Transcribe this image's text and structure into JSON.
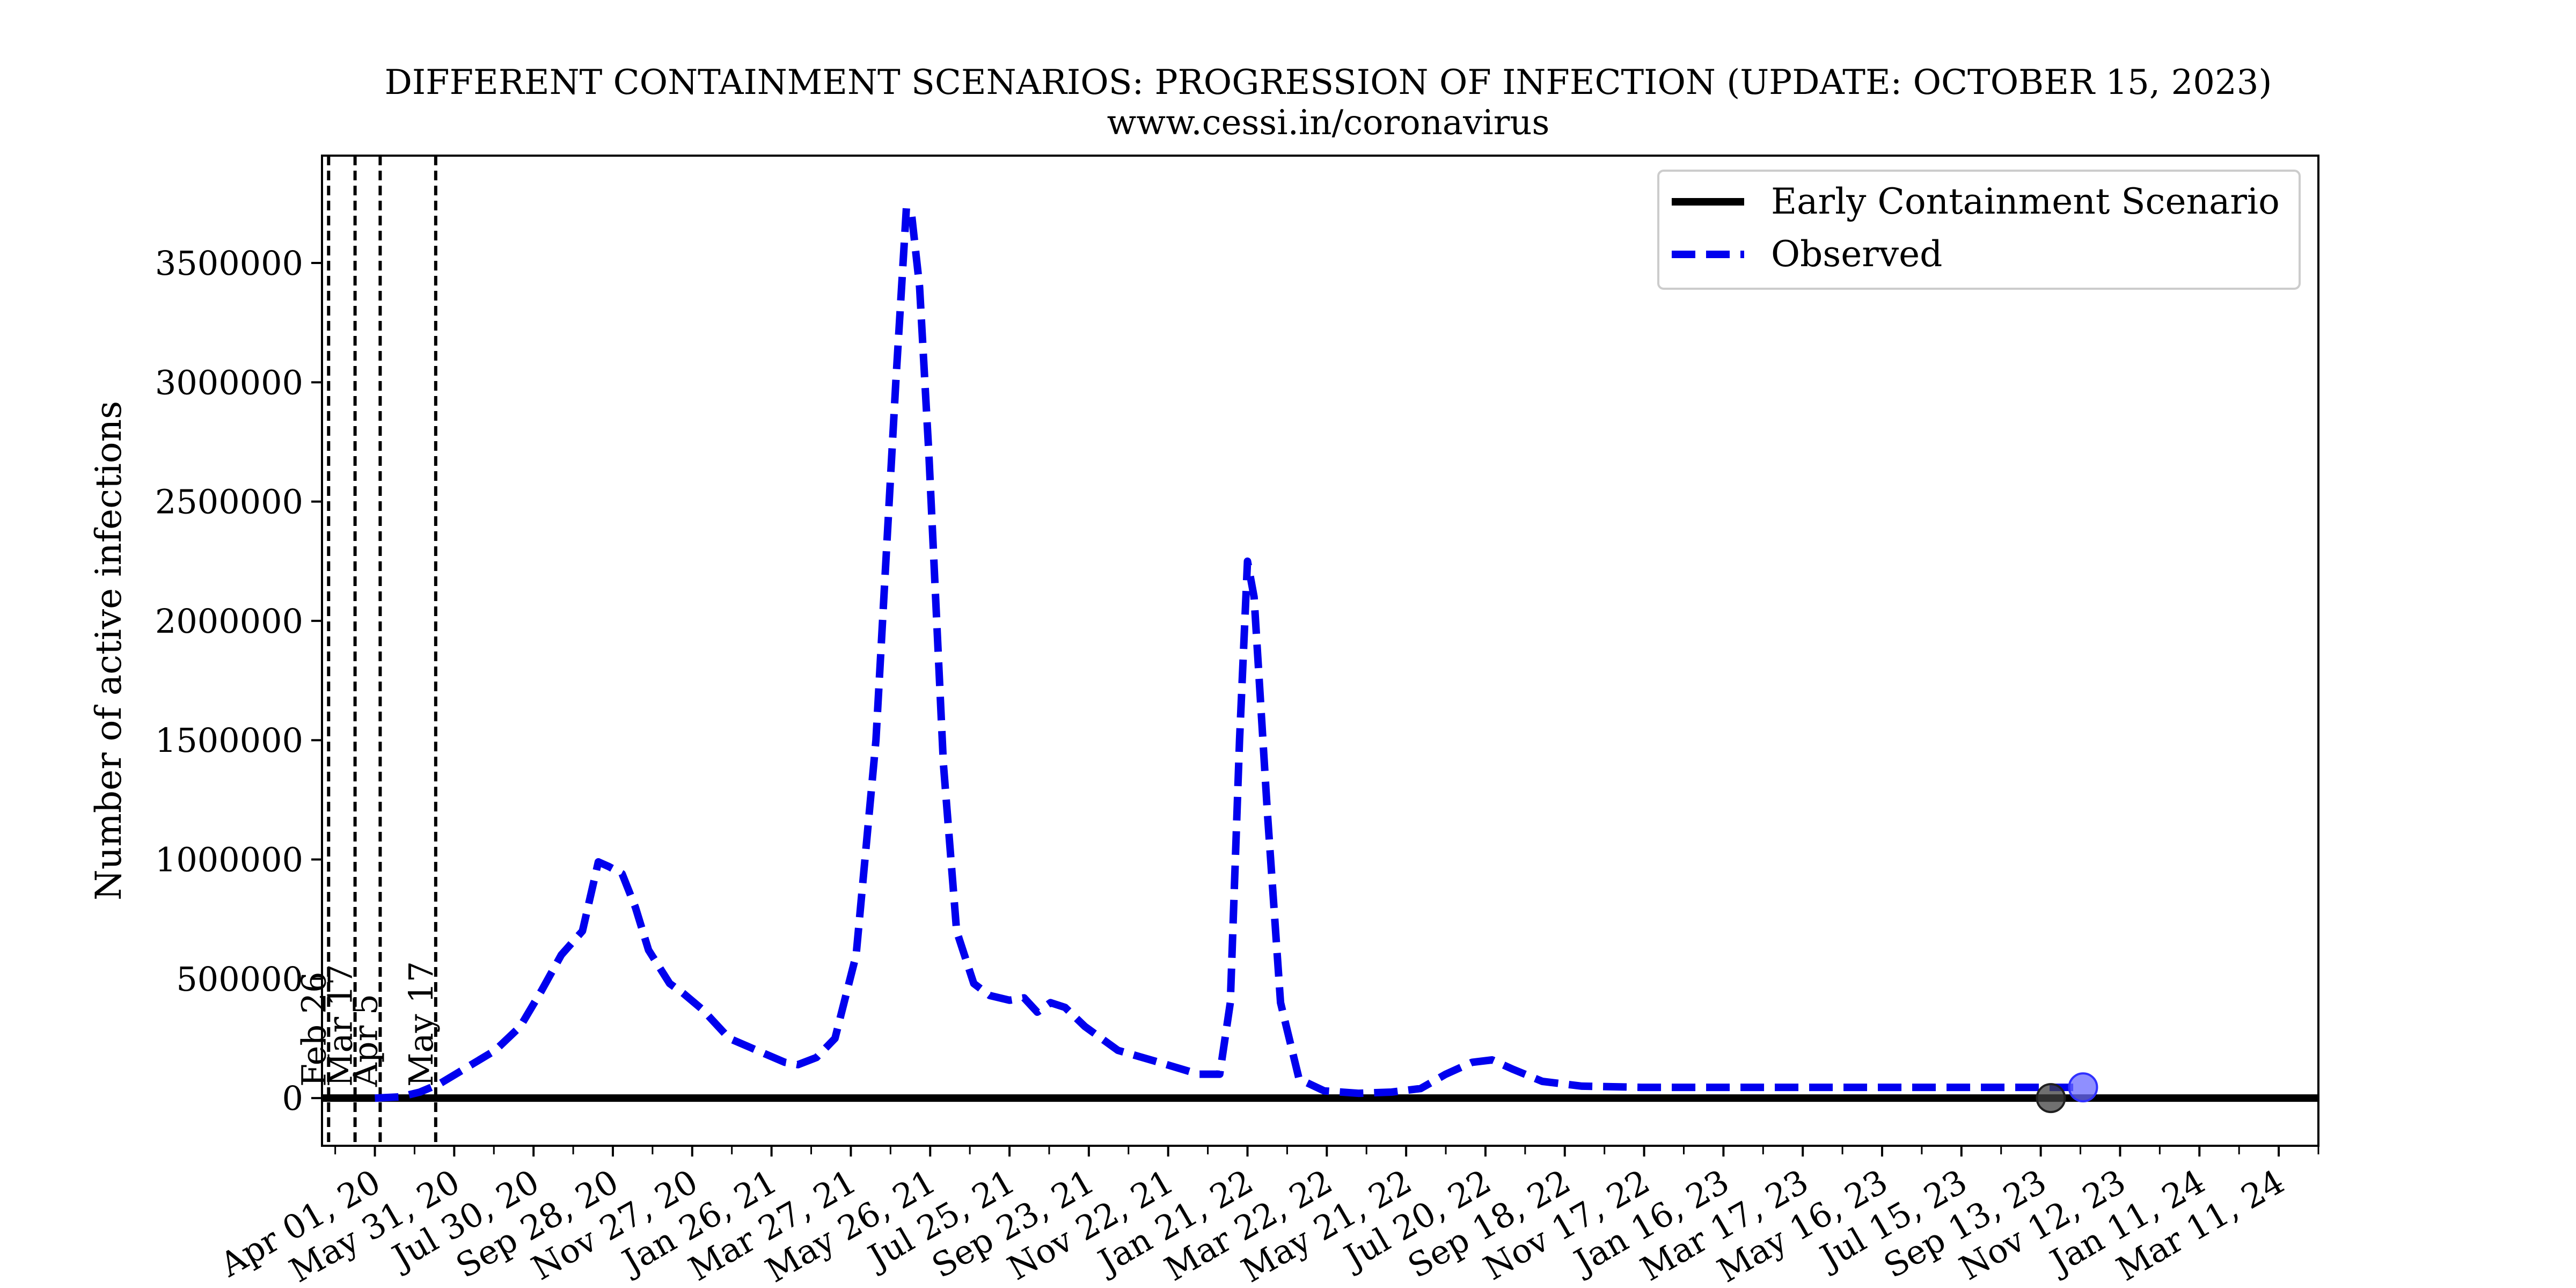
{
  "chart_data": {
    "type": "line",
    "title": "DIFFERENT CONTAINMENT SCENARIOS: PROGRESSION OF INFECTION (UPDATE: OCTOBER 15, 2023)",
    "subtitle": "www.cessi.in/coronavirus",
    "xlabel": "",
    "ylabel": "Number of active infections",
    "x_axis_type": "date",
    "xlim": [
      "2020-02-21",
      "2024-04-10"
    ],
    "ylim": [
      -200000,
      3950000
    ],
    "x_ticks": [
      {
        "date": "2020-04-01",
        "label": "Apr 01, 20"
      },
      {
        "date": "2020-05-31",
        "label": "May 31, 20"
      },
      {
        "date": "2020-07-30",
        "label": "Jul 30, 20"
      },
      {
        "date": "2020-09-28",
        "label": "Sep 28, 20"
      },
      {
        "date": "2020-11-27",
        "label": "Nov 27, 20"
      },
      {
        "date": "2021-01-26",
        "label": "Jan 26, 21"
      },
      {
        "date": "2021-03-27",
        "label": "Mar 27, 21"
      },
      {
        "date": "2021-05-26",
        "label": "May 26, 21"
      },
      {
        "date": "2021-07-25",
        "label": "Jul 25, 21"
      },
      {
        "date": "2021-09-23",
        "label": "Sep 23, 21"
      },
      {
        "date": "2021-11-22",
        "label": "Nov 22, 21"
      },
      {
        "date": "2022-01-21",
        "label": "Jan 21, 22"
      },
      {
        "date": "2022-03-22",
        "label": "Mar 22, 22"
      },
      {
        "date": "2022-05-21",
        "label": "May 21, 22"
      },
      {
        "date": "2022-07-20",
        "label": "Jul 20, 22"
      },
      {
        "date": "2022-09-18",
        "label": "Sep 18, 22"
      },
      {
        "date": "2022-11-17",
        "label": "Nov 17, 22"
      },
      {
        "date": "2023-01-16",
        "label": "Jan 16, 23"
      },
      {
        "date": "2023-03-17",
        "label": "Mar 17, 23"
      },
      {
        "date": "2023-05-16",
        "label": "May 16, 23"
      },
      {
        "date": "2023-07-15",
        "label": "Jul 15, 23"
      },
      {
        "date": "2023-09-13",
        "label": "Sep 13, 23"
      },
      {
        "date": "2023-11-12",
        "label": "Nov 12, 23"
      },
      {
        "date": "2024-01-11",
        "label": "Jan 11, 24"
      },
      {
        "date": "2024-03-11",
        "label": "Mar 11, 24"
      }
    ],
    "minor_x_ticks": [
      "2020-03-02",
      "2020-05-01",
      "2020-06-30",
      "2020-08-29",
      "2020-10-28",
      "2020-12-27",
      "2021-02-25",
      "2021-04-26",
      "2021-06-25",
      "2021-08-24",
      "2021-10-23",
      "2021-12-22",
      "2022-02-20",
      "2022-04-21",
      "2022-06-20",
      "2022-08-19",
      "2022-10-18",
      "2022-12-17",
      "2023-02-15",
      "2023-04-16",
      "2023-06-15",
      "2023-08-14",
      "2023-10-13",
      "2023-12-12",
      "2024-02-10",
      "2024-04-10"
    ],
    "y_ticks": [
      0,
      500000,
      1000000,
      1500000,
      2000000,
      2500000,
      3000000,
      3500000
    ],
    "grid": false,
    "legend_position": "top-right",
    "vertical_markers": [
      {
        "date": "2020-02-26",
        "label": "Feb 26"
      },
      {
        "date": "2020-03-17",
        "label": "Mar 17"
      },
      {
        "date": "2020-04-05",
        "label": "Apr 5"
      },
      {
        "date": "2020-05-17",
        "label": "May 17"
      }
    ],
    "series": [
      {
        "name": "Early Containment Scenario",
        "color": "#000000",
        "style": "solid",
        "points": [
          [
            "2020-02-21",
            0
          ],
          [
            "2024-04-10",
            0
          ]
        ],
        "end_marker": {
          "date": "2023-10-15",
          "value": 0,
          "color": "#404040"
        }
      },
      {
        "name": "Observed",
        "color": "#0000ee",
        "style": "dashed",
        "points": [
          [
            "2020-04-01",
            0
          ],
          [
            "2020-04-20",
            5000
          ],
          [
            "2020-05-05",
            25000
          ],
          [
            "2020-05-20",
            60000
          ],
          [
            "2020-06-10",
            130000
          ],
          [
            "2020-07-01",
            200000
          ],
          [
            "2020-07-20",
            300000
          ],
          [
            "2020-08-05",
            450000
          ],
          [
            "2020-08-20",
            600000
          ],
          [
            "2020-09-05",
            700000
          ],
          [
            "2020-09-17",
            990000
          ],
          [
            "2020-09-25",
            970000
          ],
          [
            "2020-10-05",
            940000
          ],
          [
            "2020-10-15",
            800000
          ],
          [
            "2020-10-25",
            620000
          ],
          [
            "2020-11-10",
            480000
          ],
          [
            "2020-11-20",
            440000
          ],
          [
            "2020-12-05",
            370000
          ],
          [
            "2020-12-25",
            250000
          ],
          [
            "2021-01-15",
            200000
          ],
          [
            "2021-02-05",
            150000
          ],
          [
            "2021-02-15",
            140000
          ],
          [
            "2021-03-01",
            170000
          ],
          [
            "2021-03-15",
            250000
          ],
          [
            "2021-03-31",
            600000
          ],
          [
            "2021-04-15",
            1500000
          ],
          [
            "2021-04-30",
            3000000
          ],
          [
            "2021-05-08",
            3730000
          ],
          [
            "2021-05-12",
            3700000
          ],
          [
            "2021-05-18",
            3400000
          ],
          [
            "2021-05-25",
            2700000
          ],
          [
            "2021-06-05",
            1400000
          ],
          [
            "2021-06-15",
            700000
          ],
          [
            "2021-06-28",
            480000
          ],
          [
            "2021-07-10",
            430000
          ],
          [
            "2021-07-25",
            410000
          ],
          [
            "2021-08-05",
            420000
          ],
          [
            "2021-08-15",
            360000
          ],
          [
            "2021-08-25",
            400000
          ],
          [
            "2021-09-05",
            380000
          ],
          [
            "2021-09-20",
            300000
          ],
          [
            "2021-10-15",
            200000
          ],
          [
            "2021-11-15",
            150000
          ],
          [
            "2021-12-15",
            100000
          ],
          [
            "2021-12-31",
            100000
          ],
          [
            "2022-01-08",
            400000
          ],
          [
            "2022-01-15",
            1500000
          ],
          [
            "2022-01-21",
            2250000
          ],
          [
            "2022-01-26",
            2100000
          ],
          [
            "2022-02-05",
            1200000
          ],
          [
            "2022-02-15",
            400000
          ],
          [
            "2022-03-01",
            80000
          ],
          [
            "2022-03-20",
            30000
          ],
          [
            "2022-04-15",
            20000
          ],
          [
            "2022-05-10",
            25000
          ],
          [
            "2022-06-01",
            40000
          ],
          [
            "2022-06-20",
            100000
          ],
          [
            "2022-07-10",
            150000
          ],
          [
            "2022-07-25",
            160000
          ],
          [
            "2022-08-10",
            120000
          ],
          [
            "2022-09-01",
            70000
          ],
          [
            "2022-10-01",
            50000
          ],
          [
            "2022-11-15",
            45000
          ],
          [
            "2023-01-01",
            45000
          ],
          [
            "2023-06-01",
            45000
          ],
          [
            "2023-10-15",
            45000
          ]
        ],
        "end_marker": {
          "date": "2023-10-15",
          "value": 45000,
          "color": "#6a6aff"
        }
      }
    ]
  }
}
